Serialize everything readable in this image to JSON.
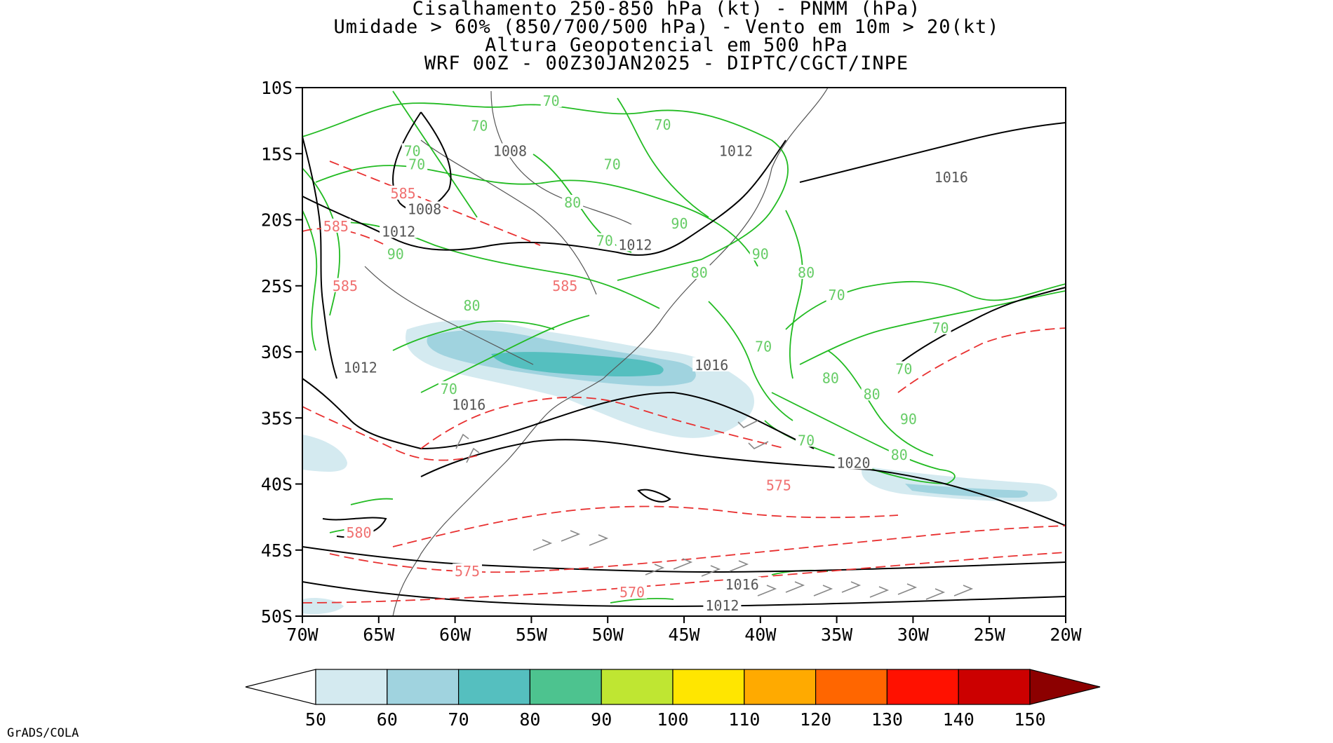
{
  "title": {
    "line1": "Cisalhamento 250-850 hPa (kt) - PNMM (hPa)",
    "line2": "Umidade > 60% (850/700/500 hPa) - Vento em 10m > 20(kt)",
    "line3": "Altura Geopotencial em 500 hPa",
    "line4": "WRF 00Z - 00Z30JAN2025 - DIPTC/CGCT/INPE"
  },
  "axes": {
    "lat_labels": [
      "10S",
      "15S",
      "20S",
      "25S",
      "30S",
      "35S",
      "40S",
      "45S",
      "50S"
    ],
    "lon_labels": [
      "70W",
      "65W",
      "60W",
      "55W",
      "50W",
      "45W",
      "40W",
      "35W",
      "30W",
      "25W",
      "20W"
    ],
    "lon_range": [
      -70,
      -20
    ],
    "lat_range": [
      -50,
      -10
    ]
  },
  "colorbar": {
    "labels": [
      "50",
      "60",
      "70",
      "80",
      "90",
      "100",
      "110",
      "120",
      "130",
      "140",
      "150"
    ],
    "colors": [
      "#d4eaf0",
      "#a0d3df",
      "#55bfbf",
      "#4dc38f",
      "#bfe632",
      "#ffe600",
      "#ffaa00",
      "#ff6600",
      "#ff1100",
      "#cc0000",
      "#8c0000"
    ],
    "under_color": "#ffffff",
    "over_color": "#8c0000"
  },
  "contour_labels": {
    "pressure": [
      {
        "text": "1008",
        "lon": -56.4,
        "lat": -14.8
      },
      {
        "text": "1012",
        "lon": -41.6,
        "lat": -14.8
      },
      {
        "text": "1016",
        "lon": -27.5,
        "lat": -16.8
      },
      {
        "text": "1008",
        "lon": -62.0,
        "lat": -19.2
      },
      {
        "text": "1012",
        "lon": -63.7,
        "lat": -20.9
      },
      {
        "text": "1012",
        "lon": -48.2,
        "lat": -21.9
      },
      {
        "text": "1016",
        "lon": -43.2,
        "lat": -31.0
      },
      {
        "text": "1012",
        "lon": -66.2,
        "lat": -31.2
      },
      {
        "text": "1016",
        "lon": -59.1,
        "lat": -34.0
      },
      {
        "text": "1020",
        "lon": -33.9,
        "lat": -38.4
      },
      {
        "text": "1016",
        "lon": -41.2,
        "lat": -47.6
      },
      {
        "text": "1012",
        "lon": -42.5,
        "lat": -49.2
      }
    ],
    "geopotential": [
      {
        "text": "585",
        "lon": -63.4,
        "lat": -18.0
      },
      {
        "text": "585",
        "lon": -67.8,
        "lat": -20.5
      },
      {
        "text": "585",
        "lon": -52.8,
        "lat": -25.0
      },
      {
        "text": "585",
        "lon": -67.2,
        "lat": -25.0
      },
      {
        "text": "575",
        "lon": -38.8,
        "lat": -40.1
      },
      {
        "text": "580",
        "lon": -66.3,
        "lat": -43.7
      },
      {
        "text": "575",
        "lon": -59.2,
        "lat": -46.6
      },
      {
        "text": "570",
        "lon": -48.4,
        "lat": -48.2
      }
    ],
    "humidity": [
      {
        "text": "70",
        "lon": -53.7,
        "lat": -11.0
      },
      {
        "text": "70",
        "lon": -46.4,
        "lat": -12.8
      },
      {
        "text": "70",
        "lon": -58.4,
        "lat": -12.9
      },
      {
        "text": "70",
        "lon": -62.8,
        "lat": -14.8
      },
      {
        "text": "70",
        "lon": -62.5,
        "lat": -15.8
      },
      {
        "text": "70",
        "lon": -49.7,
        "lat": -15.8
      },
      {
        "text": "80",
        "lon": -52.3,
        "lat": -18.7
      },
      {
        "text": "90",
        "lon": -45.3,
        "lat": -20.3
      },
      {
        "text": "70",
        "lon": -50.2,
        "lat": -21.6
      },
      {
        "text": "90",
        "lon": -63.9,
        "lat": -22.6
      },
      {
        "text": "90",
        "lon": -40.0,
        "lat": -22.6
      },
      {
        "text": "80",
        "lon": -44.0,
        "lat": -24.0
      },
      {
        "text": "80",
        "lon": -37.0,
        "lat": -24.0
      },
      {
        "text": "70",
        "lon": -35.0,
        "lat": -25.7
      },
      {
        "text": "80",
        "lon": -58.9,
        "lat": -26.5
      },
      {
        "text": "70",
        "lon": -28.2,
        "lat": -28.2
      },
      {
        "text": "70",
        "lon": -39.8,
        "lat": -29.6
      },
      {
        "text": "80",
        "lon": -35.4,
        "lat": -32.0
      },
      {
        "text": "70",
        "lon": -30.6,
        "lat": -31.3
      },
      {
        "text": "70",
        "lon": -60.4,
        "lat": -32.8
      },
      {
        "text": "80",
        "lon": -32.7,
        "lat": -33.2
      },
      {
        "text": "90",
        "lon": -30.3,
        "lat": -35.1
      },
      {
        "text": "70",
        "lon": -37.0,
        "lat": -36.7
      },
      {
        "text": "80",
        "lon": -30.9,
        "lat": -37.8
      }
    ]
  }
}
